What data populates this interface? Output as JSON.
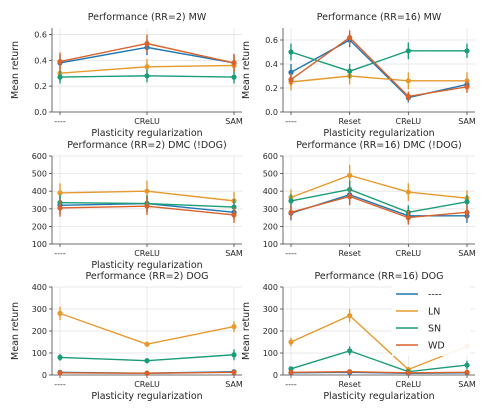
{
  "figure": {
    "background": "#ffffff"
  },
  "legend": {
    "placement": "inside lower panel, right side",
    "entries": [
      {
        "label": "----",
        "color": "#1f77b4"
      },
      {
        "label": "LN",
        "color": "#e69a2e"
      },
      {
        "label": "SN",
        "color": "#1a9c78"
      },
      {
        "label": "WD",
        "color": "#d9622b"
      }
    ]
  },
  "chart_data": [
    {
      "type": "line",
      "title": "Performance (RR=2) MW",
      "xlabel": "Plasticity regularization",
      "ylabel": "Mean return",
      "categories": [
        "----",
        "CReLU",
        "SAM"
      ],
      "ylim": [
        0,
        0.65
      ],
      "yticks": [
        0.0,
        0.2,
        0.4,
        0.6
      ],
      "grid": true,
      "series": [
        {
          "name": "----",
          "color": "#1f77b4",
          "values": [
            0.38,
            0.5,
            0.38
          ],
          "errors": [
            0.06,
            0.06,
            0.06
          ]
        },
        {
          "name": "LN",
          "color": "#e69a2e",
          "values": [
            0.3,
            0.35,
            0.36
          ],
          "errors": [
            0.06,
            0.06,
            0.06
          ]
        },
        {
          "name": "SN",
          "color": "#1a9c78",
          "values": [
            0.27,
            0.28,
            0.27
          ],
          "errors": [
            0.05,
            0.05,
            0.05
          ]
        },
        {
          "name": "WD",
          "color": "#d9622b",
          "values": [
            0.39,
            0.53,
            0.38
          ],
          "errors": [
            0.07,
            0.07,
            0.07
          ]
        }
      ]
    },
    {
      "type": "line",
      "title": "Performance (RR=16) MW",
      "xlabel": "Plasticity regularization",
      "ylabel": "Mean return",
      "categories": [
        "----",
        "Reset",
        "CReLU",
        "SAM"
      ],
      "ylim": [
        0,
        0.7
      ],
      "yticks": [
        0.0,
        0.2,
        0.4,
        0.6
      ],
      "grid": true,
      "series": [
        {
          "name": "----",
          "color": "#1f77b4",
          "values": [
            0.33,
            0.6,
            0.12,
            0.23
          ],
          "errors": [
            0.07,
            0.06,
            0.04,
            0.04
          ]
        },
        {
          "name": "LN",
          "color": "#e69a2e",
          "values": [
            0.25,
            0.3,
            0.26,
            0.26
          ],
          "errors": [
            0.07,
            0.07,
            0.07,
            0.07
          ]
        },
        {
          "name": "SN",
          "color": "#1a9c78",
          "values": [
            0.5,
            0.34,
            0.51,
            0.51
          ],
          "errors": [
            0.07,
            0.06,
            0.07,
            0.06
          ]
        },
        {
          "name": "WD",
          "color": "#d9622b",
          "values": [
            0.27,
            0.62,
            0.13,
            0.21
          ],
          "errors": [
            0.05,
            0.06,
            0.04,
            0.05
          ]
        }
      ]
    },
    {
      "type": "line",
      "title": "Performance (RR=2) DMC (!DOG)",
      "xlabel": "Plasticity regularization",
      "ylabel": "",
      "categories": [
        "----",
        "CReLU",
        "SAM"
      ],
      "ylim": [
        100,
        600
      ],
      "yticks": [
        100,
        200,
        300,
        400,
        500,
        600
      ],
      "grid": true,
      "series": [
        {
          "name": "----",
          "color": "#1f77b4",
          "values": [
            320,
            330,
            280
          ],
          "errors": [
            50,
            50,
            40
          ]
        },
        {
          "name": "LN",
          "color": "#e69a2e",
          "values": [
            390,
            400,
            345
          ],
          "errors": [
            55,
            60,
            50
          ]
        },
        {
          "name": "SN",
          "color": "#1a9c78",
          "values": [
            335,
            330,
            310
          ],
          "errors": [
            45,
            45,
            45
          ]
        },
        {
          "name": "WD",
          "color": "#d9622b",
          "values": [
            305,
            315,
            265
          ],
          "errors": [
            50,
            50,
            45
          ]
        }
      ]
    },
    {
      "type": "line",
      "title": "Performance (RR=16) DMC (!DOG)",
      "xlabel": "",
      "ylabel": "",
      "categories": [
        "----",
        "Reset",
        "CReLU",
        "SAM"
      ],
      "ylim": [
        100,
        600
      ],
      "yticks": [
        100,
        200,
        300,
        400,
        500,
        600
      ],
      "grid": true,
      "series": [
        {
          "name": "----",
          "color": "#1f77b4",
          "values": [
            275,
            380,
            260,
            260
          ],
          "errors": [
            40,
            50,
            40,
            40
          ]
        },
        {
          "name": "LN",
          "color": "#e69a2e",
          "values": [
            365,
            490,
            395,
            360
          ],
          "errors": [
            45,
            60,
            50,
            45
          ]
        },
        {
          "name": "SN",
          "color": "#1a9c78",
          "values": [
            345,
            410,
            280,
            340
          ],
          "errors": [
            40,
            50,
            40,
            40
          ]
        },
        {
          "name": "WD",
          "color": "#d9622b",
          "values": [
            280,
            370,
            250,
            280
          ],
          "errors": [
            40,
            50,
            40,
            40
          ]
        }
      ]
    },
    {
      "type": "line",
      "title": "Performance (RR=2) DOG",
      "xlabel": "Plasticity regularization",
      "ylabel": "Mean return",
      "categories": [
        "----",
        "CReLU",
        "SAM"
      ],
      "ylim": [
        0,
        400
      ],
      "yticks": [
        0,
        100,
        200,
        300,
        400
      ],
      "grid": true,
      "series": [
        {
          "name": "----",
          "color": "#1f77b4",
          "values": [
            12,
            8,
            15
          ],
          "errors": [
            6,
            5,
            6
          ]
        },
        {
          "name": "LN",
          "color": "#e69a2e",
          "values": [
            280,
            140,
            220
          ],
          "errors": [
            30,
            12,
            25
          ]
        },
        {
          "name": "SN",
          "color": "#1a9c78",
          "values": [
            80,
            65,
            92
          ],
          "errors": [
            15,
            12,
            25
          ]
        },
        {
          "name": "WD",
          "color": "#d9622b",
          "values": [
            10,
            8,
            12
          ],
          "errors": [
            5,
            5,
            6
          ]
        }
      ]
    },
    {
      "type": "line",
      "title": "Performance (RR=16) DOG",
      "xlabel": "Plasticity regularization",
      "ylabel": "Mean return",
      "categories": [
        "----",
        "Reset",
        "CReLU",
        "SAM"
      ],
      "ylim": [
        0,
        400
      ],
      "yticks": [
        0,
        100,
        200,
        300,
        400
      ],
      "grid": true,
      "series": [
        {
          "name": "----",
          "color": "#1f77b4",
          "values": [
            10,
            12,
            8,
            10
          ],
          "errors": [
            5,
            6,
            5,
            5
          ]
        },
        {
          "name": "LN",
          "color": "#e69a2e",
          "values": [
            150,
            270,
            25,
            130
          ],
          "errors": [
            20,
            30,
            10,
            15
          ]
        },
        {
          "name": "SN",
          "color": "#1a9c78",
          "values": [
            28,
            110,
            15,
            45
          ],
          "errors": [
            10,
            20,
            8,
            20
          ]
        },
        {
          "name": "WD",
          "color": "#d9622b",
          "values": [
            12,
            15,
            10,
            12
          ],
          "errors": [
            5,
            6,
            5,
            5
          ]
        }
      ]
    }
  ]
}
